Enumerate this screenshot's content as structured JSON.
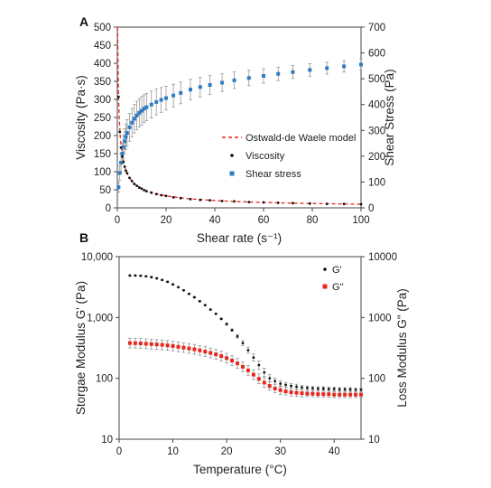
{
  "chart_data": [
    {
      "panel_label": "A",
      "type": "scatter",
      "xlabel": "Shear rate (s⁻¹)",
      "ylabel": "Viscosity (Pa·s)",
      "y2label": "Shear Stress (Pa)",
      "xlim": [
        0,
        100
      ],
      "ylim": [
        0,
        500
      ],
      "y2lim": [
        0,
        700
      ],
      "x_ticks": [
        "0",
        "20",
        "40",
        "60",
        "80",
        "100"
      ],
      "y_ticks": [
        "0",
        "50",
        "100",
        "150",
        "200",
        "250",
        "300",
        "350",
        "400",
        "450",
        "500"
      ],
      "y2_ticks": [
        "0",
        "100",
        "200",
        "300",
        "400",
        "500",
        "600",
        "700"
      ],
      "grid": false,
      "legend_position": "center-right",
      "series": [
        {
          "name": "Ostwald-de Waele model",
          "kind": "model-line",
          "axis": "left",
          "color": "#e8261e",
          "x": [
            0.05,
            0.1,
            0.2,
            0.3,
            0.5,
            0.8,
            1.2,
            1.8,
            2.5,
            3.5,
            5,
            7,
            10,
            14,
            20,
            28,
            38,
            50,
            65,
            80,
            100
          ],
          "values": [
            500,
            500,
            452,
            396,
            307,
            245,
            196,
            155,
            127,
            103,
            83,
            66,
            53,
            42,
            33,
            26,
            21,
            17,
            14,
            12,
            10
          ]
        },
        {
          "name": "Viscosity",
          "kind": "markers",
          "axis": "left",
          "color": "#111111",
          "x": [
            0.5,
            1,
            1.5,
            2,
            2.5,
            3,
            3.5,
            4,
            5,
            6,
            7,
            8,
            9,
            10,
            11,
            12,
            14,
            16,
            18,
            20,
            23,
            26,
            30,
            34,
            38,
            43,
            48,
            54,
            60,
            66,
            72,
            79,
            86,
            93,
            100
          ],
          "values": [
            307,
            210,
            167,
            142,
            127,
            114,
            103,
            96,
            83,
            74,
            66,
            61,
            56,
            53,
            49,
            46,
            42,
            38,
            35,
            33,
            29,
            27,
            24,
            22,
            21,
            19,
            18,
            16,
            15,
            14,
            13,
            12,
            11,
            11,
            10
          ]
        },
        {
          "name": "Shear stress",
          "kind": "markers-errorbars",
          "axis": "right",
          "color": "#2e7bc4",
          "x": [
            0.5,
            1,
            1.5,
            2,
            2.5,
            3,
            3.5,
            4,
            5,
            6,
            7,
            8,
            9,
            10,
            11,
            12,
            14,
            16,
            18,
            20,
            23,
            26,
            30,
            34,
            38,
            43,
            48,
            54,
            60,
            66,
            72,
            79,
            86,
            93,
            100
          ],
          "values": [
            80,
            135,
            175,
            210,
            235,
            258,
            275,
            290,
            312,
            330,
            345,
            358,
            368,
            376,
            384,
            390,
            400,
            410,
            418,
            425,
            435,
            445,
            458,
            468,
            476,
            485,
            494,
            503,
            511,
            519,
            526,
            534,
            541,
            548,
            555
          ],
          "errors": [
            20,
            28,
            35,
            40,
            45,
            48,
            50,
            52,
            54,
            55,
            55,
            55,
            55,
            55,
            54,
            53,
            52,
            50,
            48,
            46,
            44,
            42,
            40,
            38,
            36,
            34,
            32,
            30,
            28,
            26,
            25,
            24,
            23,
            22,
            22
          ]
        }
      ]
    },
    {
      "panel_label": "B",
      "type": "scatter",
      "xlabel": "Temperature (°C)",
      "ylabel": "Storgae Modulus G' (Pa)",
      "y2label": "Loss Modulus G\" (Pa)",
      "y_scale": "log",
      "xlim": [
        0,
        45
      ],
      "ylim": [
        10,
        10000
      ],
      "y2lim": [
        10,
        10000
      ],
      "x_ticks": [
        "0",
        "10",
        "20",
        "30",
        "40"
      ],
      "y_ticks": [
        "10",
        "100",
        "1,000",
        "10,000"
      ],
      "y2_ticks": [
        "10",
        "100",
        "1000",
        "10000"
      ],
      "grid": false,
      "legend_position": "top-right",
      "series": [
        {
          "name": "G'",
          "kind": "markers-errorbars",
          "axis": "left",
          "color": "#111111",
          "x": [
            2,
            3,
            4,
            5,
            6,
            7,
            8,
            9,
            10,
            11,
            12,
            13,
            14,
            15,
            16,
            17,
            18,
            19,
            20,
            21,
            22,
            23,
            24,
            25,
            26,
            27,
            28,
            29,
            30,
            31,
            32,
            33,
            34,
            35,
            36,
            37,
            38,
            39,
            40,
            41,
            42,
            43,
            44,
            45
          ],
          "values": [
            4900,
            4900,
            4850,
            4750,
            4600,
            4400,
            4150,
            3850,
            3500,
            3150,
            2800,
            2450,
            2150,
            1850,
            1600,
            1350,
            1150,
            950,
            780,
            620,
            490,
            380,
            290,
            220,
            165,
            125,
            100,
            90,
            82,
            78,
            75,
            73,
            71,
            70,
            69,
            68,
            68,
            67,
            67,
            66,
            66,
            66,
            65,
            65
          ],
          "errors_log": [
            0.01,
            0.01,
            0.01,
            0.01,
            0.01,
            0.01,
            0.01,
            0.01,
            0.01,
            0.01,
            0.01,
            0.01,
            0.01,
            0.01,
            0.01,
            0.01,
            0.01,
            0.01,
            0.02,
            0.02,
            0.03,
            0.04,
            0.05,
            0.06,
            0.07,
            0.07,
            0.06,
            0.05,
            0.05,
            0.04,
            0.04,
            0.04,
            0.03,
            0.03,
            0.03,
            0.03,
            0.03,
            0.03,
            0.03,
            0.03,
            0.03,
            0.03,
            0.03,
            0.03
          ]
        },
        {
          "name": "G''",
          "kind": "markers-errorbars",
          "axis": "right",
          "color": "#e8261e",
          "x": [
            2,
            3,
            4,
            5,
            6,
            7,
            8,
            9,
            10,
            11,
            12,
            13,
            14,
            15,
            16,
            17,
            18,
            19,
            20,
            21,
            22,
            23,
            24,
            25,
            26,
            27,
            28,
            29,
            30,
            31,
            32,
            33,
            34,
            35,
            36,
            37,
            38,
            39,
            40,
            41,
            42,
            43,
            44,
            45
          ],
          "values": [
            380,
            378,
            375,
            370,
            365,
            360,
            355,
            348,
            340,
            330,
            320,
            310,
            300,
            288,
            275,
            262,
            248,
            232,
            215,
            196,
            176,
            155,
            135,
            115,
            98,
            85,
            75,
            68,
            64,
            61,
            59,
            58,
            57,
            56,
            56,
            55,
            55,
            55,
            54,
            54,
            54,
            54,
            54,
            54
          ],
          "errors_log": [
            0.08,
            0.08,
            0.08,
            0.08,
            0.08,
            0.08,
            0.08,
            0.08,
            0.08,
            0.08,
            0.08,
            0.08,
            0.08,
            0.08,
            0.08,
            0.08,
            0.08,
            0.08,
            0.08,
            0.08,
            0.08,
            0.08,
            0.08,
            0.08,
            0.08,
            0.08,
            0.07,
            0.07,
            0.07,
            0.06,
            0.06,
            0.06,
            0.06,
            0.05,
            0.05,
            0.05,
            0.05,
            0.05,
            0.05,
            0.05,
            0.05,
            0.05,
            0.05,
            0.05
          ]
        }
      ]
    }
  ]
}
